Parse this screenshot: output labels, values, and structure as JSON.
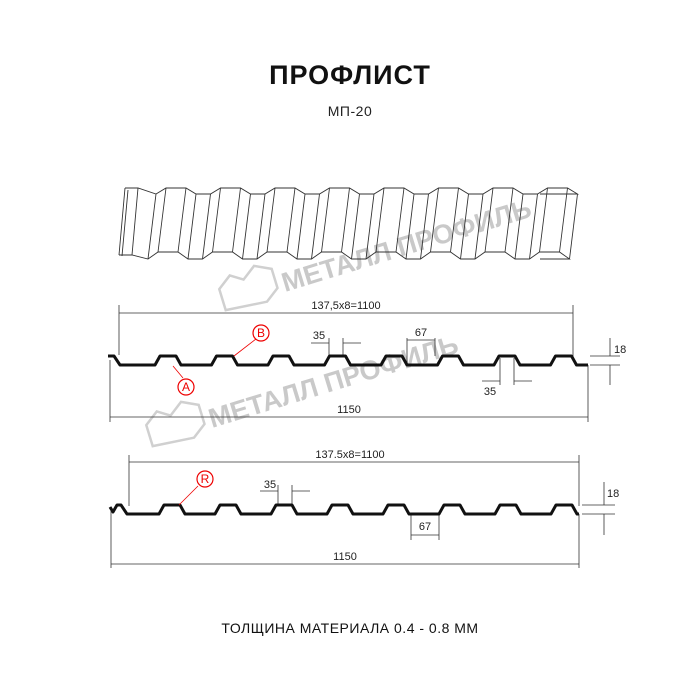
{
  "header": {
    "title": "ПРОФЛИСТ",
    "subtitle": "МП-20"
  },
  "footer": {
    "text": "ТОЛЩИНА МАТЕРИАЛА 0.4 - 0.8 ММ"
  },
  "watermark": {
    "text": "МЕТАЛЛ ПРОФИЛЬ"
  },
  "colors": {
    "profile": "#111111",
    "marker": "#e00000",
    "watermark": "#c9c9c9"
  },
  "profile_1": {
    "pitch_label": "137,5x8=1100",
    "total_label": "1150",
    "top_width_label": "35",
    "bottom_width_label": "35",
    "gap_label": "67",
    "height_label": "18",
    "markers": [
      "B",
      "A"
    ]
  },
  "profile_2": {
    "pitch_label": "137.5x8=1100",
    "total_label": "1150",
    "top_width_label": "35",
    "gap_label": "67",
    "height_label": "18",
    "markers": [
      "R"
    ]
  }
}
